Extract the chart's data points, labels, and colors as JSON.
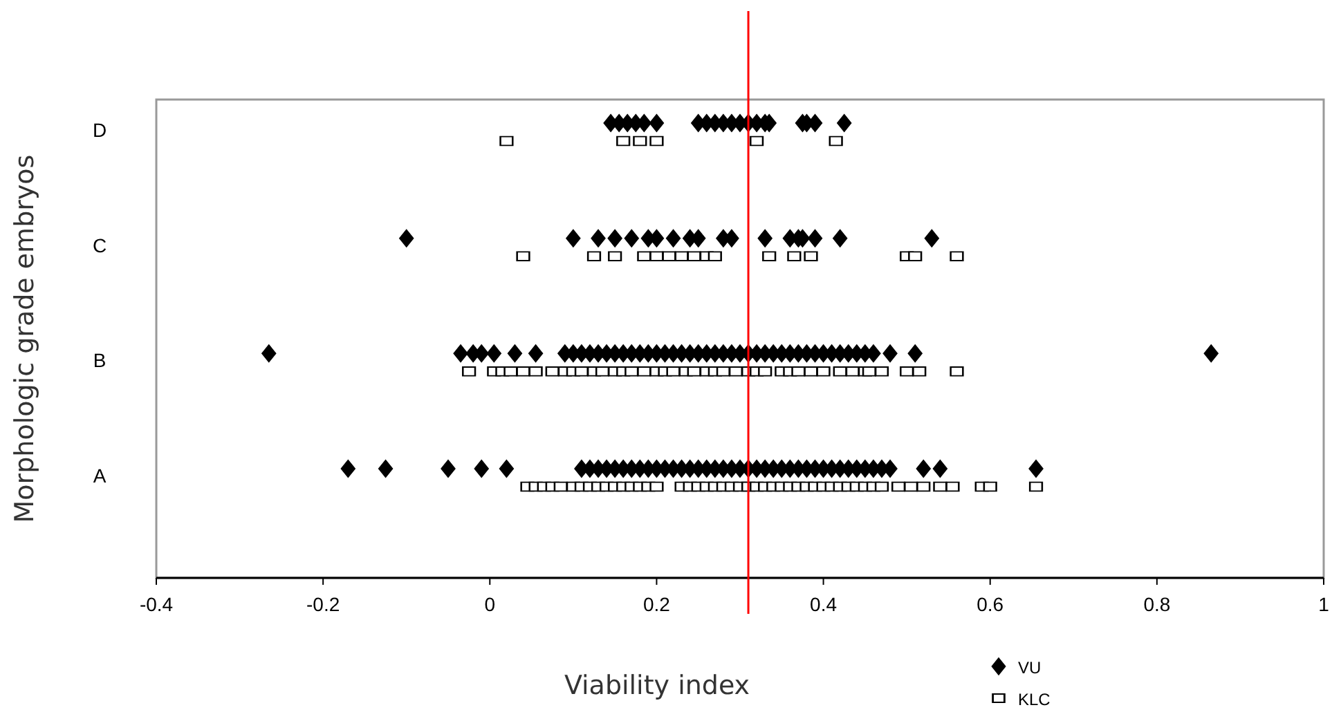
{
  "chart_data": {
    "type": "scatter",
    "orientation": "horizontal",
    "xlabel": "Viability index",
    "ylabel": "Morphologic grade embryos",
    "categories": [
      "D",
      "C",
      "B",
      "A"
    ],
    "xlim": [
      -0.4,
      1
    ],
    "xticks": [
      -0.4,
      -0.2,
      0,
      0.2,
      0.4,
      0.6,
      0.8,
      1
    ],
    "grid": false,
    "legend": "bottom",
    "ref_lines": [
      {
        "axis": "x",
        "value": 0.31,
        "color": "#ff0000"
      }
    ],
    "series": [
      {
        "name": "VU",
        "color": "#000000",
        "marker": "diamond",
        "values": [
          0.145,
          0.155,
          0.165,
          0.175,
          0.185,
          0.2,
          0.25,
          0.26,
          0.27,
          0.28,
          0.29,
          0.3,
          0.31,
          0.32,
          0.33,
          0.335,
          0.375,
          0.38,
          0.39,
          0.425,
          -0.1,
          0.1,
          0.13,
          0.15,
          0.17,
          0.19,
          0.2,
          0.22,
          0.24,
          0.25,
          0.28,
          0.29,
          0.33,
          0.36,
          0.37,
          0.375,
          0.39,
          0.42,
          0.53,
          -0.265,
          -0.035,
          -0.02,
          -0.01,
          0.005,
          0.03,
          0.055,
          0.09,
          0.1,
          0.11,
          0.12,
          0.13,
          0.14,
          0.15,
          0.16,
          0.17,
          0.18,
          0.19,
          0.2,
          0.21,
          0.22,
          0.23,
          0.24,
          0.25,
          0.26,
          0.27,
          0.28,
          0.29,
          0.3,
          0.31,
          0.32,
          0.33,
          0.34,
          0.35,
          0.36,
          0.37,
          0.38,
          0.39,
          0.4,
          0.41,
          0.42,
          0.43,
          0.44,
          0.45,
          0.46,
          0.48,
          0.51,
          0.865,
          -0.17,
          -0.125,
          -0.05,
          -0.01,
          0.02,
          0.11,
          0.12,
          0.13,
          0.14,
          0.15,
          0.16,
          0.17,
          0.18,
          0.19,
          0.2,
          0.21,
          0.22,
          0.23,
          0.24,
          0.25,
          0.26,
          0.27,
          0.28,
          0.29,
          0.3,
          0.31,
          0.32,
          0.33,
          0.34,
          0.35,
          0.36,
          0.37,
          0.38,
          0.39,
          0.4,
          0.41,
          0.42,
          0.43,
          0.44,
          0.45,
          0.46,
          0.47,
          0.48,
          0.52,
          0.54,
          0.655
        ],
        "x": [
          "D",
          "D",
          "D",
          "D",
          "D",
          "D",
          "D",
          "D",
          "D",
          "D",
          "D",
          "D",
          "D",
          "D",
          "D",
          "D",
          "D",
          "D",
          "D",
          "D",
          "C",
          "C",
          "C",
          "C",
          "C",
          "C",
          "C",
          "C",
          "C",
          "C",
          "C",
          "C",
          "C",
          "C",
          "C",
          "C",
          "C",
          "C",
          "C",
          "B",
          "B",
          "B",
          "B",
          "B",
          "B",
          "B",
          "B",
          "B",
          "B",
          "B",
          "B",
          "B",
          "B",
          "B",
          "B",
          "B",
          "B",
          "B",
          "B",
          "B",
          "B",
          "B",
          "B",
          "B",
          "B",
          "B",
          "B",
          "B",
          "B",
          "B",
          "B",
          "B",
          "B",
          "B",
          "B",
          "B",
          "B",
          "B",
          "B",
          "B",
          "B",
          "B",
          "B",
          "B",
          "B",
          "B",
          "B",
          "A",
          "A",
          "A",
          "A",
          "A",
          "A",
          "A",
          "A",
          "A",
          "A",
          "A",
          "A",
          "A",
          "A",
          "A",
          "A",
          "A",
          "A",
          "A",
          "A",
          "A",
          "A",
          "A",
          "A",
          "A",
          "A",
          "A",
          "A",
          "A",
          "A",
          "A",
          "A",
          "A",
          "A",
          "A",
          "A",
          "A",
          "A",
          "A",
          "A",
          "A",
          "A",
          "A",
          "A",
          "A",
          "A"
        ]
      },
      {
        "name": "KLC",
        "color": "#000000",
        "marker": "square",
        "values": [
          0.02,
          0.16,
          0.18,
          0.2,
          0.32,
          0.415,
          0.04,
          0.125,
          0.15,
          0.185,
          0.2,
          0.215,
          0.23,
          0.245,
          0.26,
          0.27,
          0.335,
          0.365,
          0.385,
          0.5,
          0.51,
          0.56,
          -0.025,
          0.005,
          0.015,
          0.025,
          0.04,
          0.055,
          0.075,
          0.09,
          0.1,
          0.11,
          0.125,
          0.135,
          0.15,
          0.16,
          0.17,
          0.185,
          0.2,
          0.21,
          0.22,
          0.235,
          0.245,
          0.26,
          0.27,
          0.28,
          0.295,
          0.31,
          0.32,
          0.33,
          0.35,
          0.36,
          0.37,
          0.385,
          0.4,
          0.42,
          0.435,
          0.45,
          0.455,
          0.47,
          0.5,
          0.515,
          0.56,
          0.045,
          0.055,
          0.065,
          0.075,
          0.085,
          0.1,
          0.11,
          0.12,
          0.13,
          0.14,
          0.15,
          0.16,
          0.17,
          0.18,
          0.19,
          0.2,
          0.23,
          0.24,
          0.25,
          0.26,
          0.27,
          0.28,
          0.29,
          0.3,
          0.31,
          0.32,
          0.33,
          0.34,
          0.35,
          0.36,
          0.37,
          0.38,
          0.39,
          0.4,
          0.41,
          0.42,
          0.43,
          0.44,
          0.45,
          0.46,
          0.47,
          0.49,
          0.505,
          0.52,
          0.54,
          0.555,
          0.59,
          0.6,
          0.655
        ],
        "x": [
          "D",
          "D",
          "D",
          "D",
          "D",
          "D",
          "C",
          "C",
          "C",
          "C",
          "C",
          "C",
          "C",
          "C",
          "C",
          "C",
          "C",
          "C",
          "C",
          "C",
          "C",
          "C",
          "B",
          "B",
          "B",
          "B",
          "B",
          "B",
          "B",
          "B",
          "B",
          "B",
          "B",
          "B",
          "B",
          "B",
          "B",
          "B",
          "B",
          "B",
          "B",
          "B",
          "B",
          "B",
          "B",
          "B",
          "B",
          "B",
          "B",
          "B",
          "B",
          "B",
          "B",
          "B",
          "B",
          "B",
          "B",
          "B",
          "B",
          "B",
          "B",
          "B",
          "B",
          "A",
          "A",
          "A",
          "A",
          "A",
          "A",
          "A",
          "A",
          "A",
          "A",
          "A",
          "A",
          "A",
          "A",
          "A",
          "A",
          "A",
          "A",
          "A",
          "A",
          "A",
          "A",
          "A",
          "A",
          "A",
          "A",
          "A",
          "A",
          "A",
          "A",
          "A",
          "A",
          "A",
          "A",
          "A",
          "A",
          "A",
          "A",
          "A",
          "A",
          "A",
          "A",
          "A",
          "A",
          "A",
          "A",
          "A",
          "A",
          "A"
        ]
      }
    ]
  }
}
